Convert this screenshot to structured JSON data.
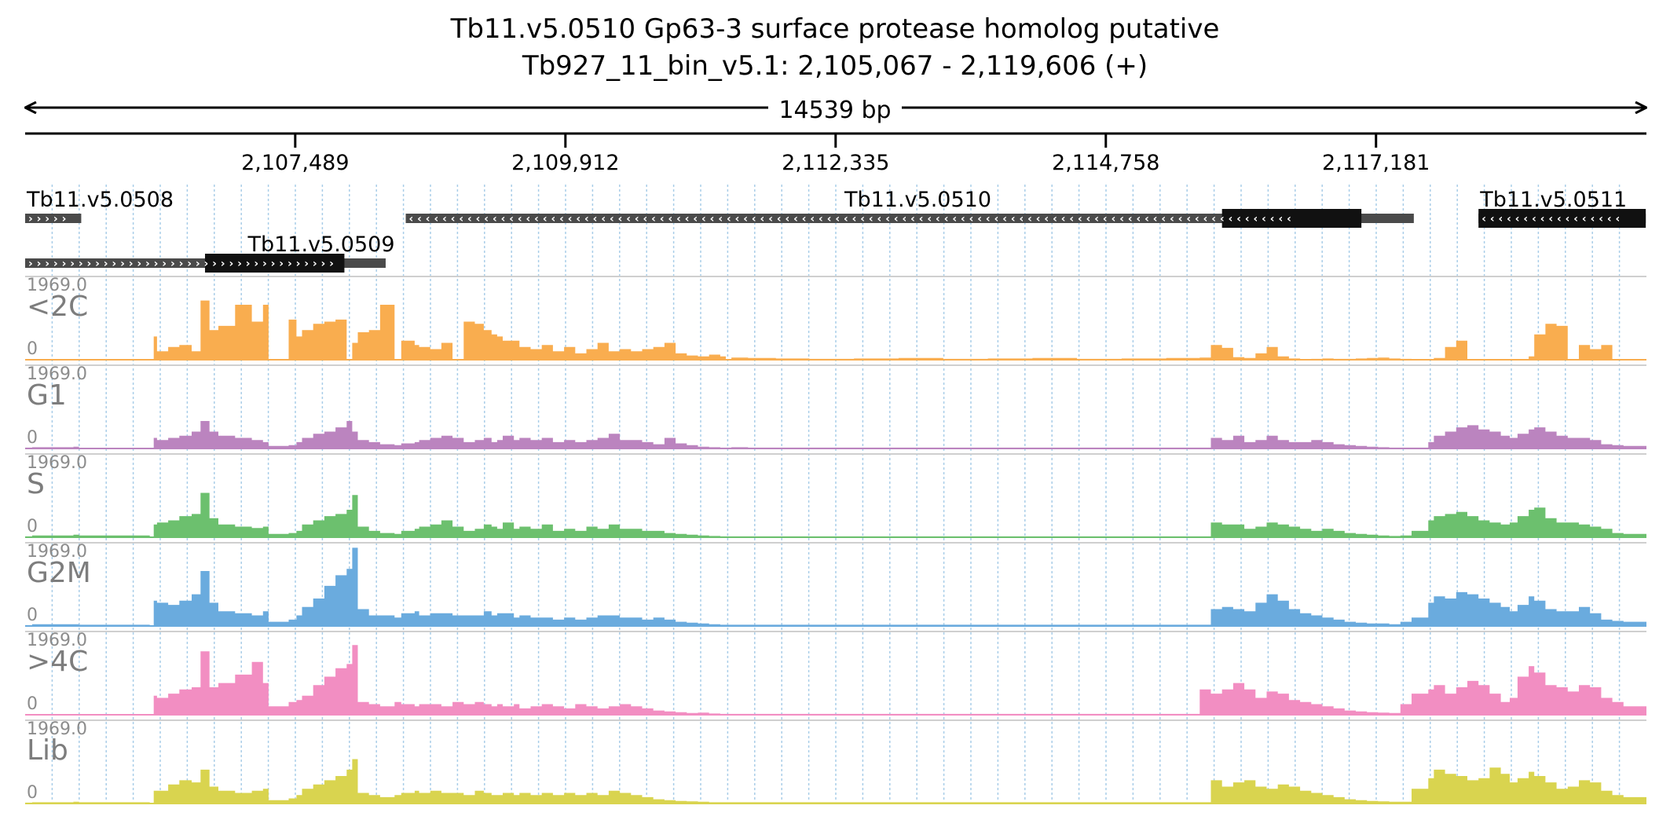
{
  "chart_data": {
    "type": "area",
    "title": "Tb11.v5.0510  Gp63-3 surface protease homolog  putative",
    "subtitle": "Tb927_11_bin_v5.1: 2,105,067 - 2,119,606 (+)",
    "span_label": "14539 bp",
    "xlim": [
      2105067,
      2119606
    ],
    "ticks": [
      {
        "value": 2107489,
        "label": "2,107,489"
      },
      {
        "value": 2109912,
        "label": "2,109,912"
      },
      {
        "value": 2112335,
        "label": "2,112,335"
      },
      {
        "value": 2114758,
        "label": "2,114,758"
      },
      {
        "value": 2117181,
        "label": "2,117,181"
      }
    ],
    "genes": [
      {
        "name": "Tb11.v5.0508",
        "start": 2105067,
        "end": 2105570,
        "strand": "+",
        "row": 0,
        "label_pos": 2105067,
        "cds": []
      },
      {
        "name": "Tb11.v5.0510",
        "start": 2108480,
        "end": 2117520,
        "strand": "-",
        "row": 0,
        "label_pos": 2112400,
        "cds": [
          [
            2115800,
            2117050
          ]
        ]
      },
      {
        "name": "Tb11.v5.0511",
        "start": 2118100,
        "end": 2119600,
        "strand": "-",
        "row": 0,
        "label_pos": 2118100,
        "cds": [
          [
            2118100,
            2119600
          ]
        ]
      },
      {
        "name": "Tb11.v5.0509",
        "start": 2105067,
        "end": 2108300,
        "strand": "+",
        "row": 1,
        "label_pos": 2107050,
        "cds": [
          [
            2106680,
            2107930
          ]
        ]
      }
    ],
    "grid": true,
    "ylim": [
      0,
      1969.0
    ],
    "ymax_label": "1969.0",
    "ymin_label": "0",
    "x": [
      2105067,
      2105130,
      2105500,
      2105550,
      2106185,
      2106220,
      2106250,
      2106350,
      2106450,
      2106560,
      2106640,
      2106720,
      2106800,
      2106950,
      2107100,
      2107200,
      2107250,
      2107430,
      2107500,
      2107550,
      2107650,
      2107750,
      2107850,
      2107950,
      2108000,
      2108050,
      2108150,
      2108250,
      2108380,
      2108440,
      2108560,
      2108600,
      2108700,
      2108800,
      2108900,
      2109000,
      2109100,
      2109180,
      2109250,
      2109300,
      2109350,
      2109450,
      2109500,
      2109600,
      2109700,
      2109800,
      2109900,
      2110000,
      2110100,
      2110200,
      2110300,
      2110400,
      2110500,
      2110600,
      2110700,
      2110800,
      2110900,
      2111000,
      2111100,
      2111200,
      2111300,
      2111350,
      2111400,
      2111550,
      2111800,
      2112100,
      2112500,
      2112900,
      2113300,
      2113700,
      2114100,
      2114500,
      2114900,
      2115300,
      2115600,
      2115700,
      2115800,
      2115900,
      2116000,
      2116100,
      2116200,
      2116300,
      2116400,
      2116500,
      2116600,
      2116700,
      2116800,
      2116900,
      2117000,
      2117100,
      2117200,
      2117300,
      2117400,
      2117500,
      2117650,
      2117700,
      2117800,
      2117900,
      2118000,
      2118100,
      2118200,
      2118300,
      2118380,
      2118450,
      2118550,
      2118600,
      2118700,
      2118800,
      2118900,
      2119000,
      2119100,
      2119200,
      2119300,
      2119400,
      2119606
    ],
    "series": [
      {
        "name": "<2C",
        "color": "#f9ad4f",
        "values": [
          0,
          0,
          0,
          0,
          0,
          550,
          200,
          300,
          350,
          200,
          1400,
          700,
          800,
          1300,
          900,
          1300,
          0,
          950,
          550,
          700,
          850,
          900,
          950,
          0,
          400,
          650,
          700,
          1300,
          0,
          450,
          350,
          300,
          250,
          400,
          0,
          900,
          850,
          700,
          600,
          550,
          450,
          450,
          300,
          250,
          350,
          200,
          300,
          150,
          250,
          400,
          200,
          250,
          200,
          250,
          300,
          400,
          150,
          100,
          80,
          120,
          80,
          0,
          50,
          40,
          30,
          20,
          30,
          40,
          20,
          30,
          40,
          20,
          30,
          40,
          50,
          350,
          280,
          60,
          40,
          150,
          300,
          80,
          30,
          0,
          20,
          30,
          20,
          20,
          30,
          40,
          50,
          30,
          20,
          0,
          0,
          40,
          300,
          450,
          0,
          0,
          0,
          0,
          0,
          0,
          80,
          600,
          850,
          800,
          0,
          350,
          250,
          350,
          0,
          0,
          0
        ]
      },
      {
        "name": "G1",
        "color": "#bb84bf",
        "values": [
          20,
          30,
          40,
          0,
          0,
          250,
          200,
          250,
          300,
          400,
          650,
          400,
          300,
          250,
          200,
          150,
          60,
          80,
          150,
          250,
          350,
          400,
          500,
          650,
          400,
          200,
          150,
          100,
          80,
          120,
          150,
          200,
          250,
          300,
          250,
          150,
          200,
          250,
          150,
          200,
          300,
          200,
          250,
          200,
          250,
          150,
          200,
          150,
          200,
          250,
          350,
          200,
          200,
          150,
          100,
          250,
          120,
          80,
          40,
          30,
          20,
          20,
          30,
          20,
          20,
          20,
          20,
          20,
          20,
          20,
          20,
          20,
          20,
          20,
          20,
          250,
          200,
          300,
          150,
          200,
          300,
          200,
          150,
          150,
          200,
          150,
          100,
          80,
          60,
          40,
          30,
          20,
          20,
          20,
          150,
          300,
          400,
          500,
          550,
          450,
          400,
          300,
          250,
          350,
          450,
          500,
          400,
          300,
          250,
          250,
          200,
          100,
          80,
          60,
          30
        ]
      },
      {
        "name": "S",
        "color": "#6cc06e",
        "values": [
          20,
          40,
          60,
          40,
          0,
          300,
          350,
          400,
          500,
          550,
          1050,
          450,
          300,
          250,
          220,
          250,
          80,
          100,
          150,
          300,
          400,
          500,
          550,
          650,
          1000,
          250,
          150,
          100,
          80,
          150,
          200,
          250,
          300,
          400,
          250,
          150,
          200,
          300,
          250,
          200,
          350,
          200,
          250,
          200,
          300,
          150,
          200,
          150,
          250,
          200,
          300,
          200,
          200,
          150,
          150,
          100,
          80,
          60,
          40,
          30,
          20,
          20,
          20,
          20,
          20,
          20,
          20,
          20,
          20,
          20,
          20,
          20,
          20,
          20,
          20,
          350,
          300,
          300,
          200,
          250,
          350,
          300,
          250,
          200,
          150,
          200,
          150,
          100,
          80,
          60,
          40,
          30,
          40,
          150,
          400,
          500,
          550,
          600,
          500,
          400,
          350,
          300,
          350,
          500,
          650,
          700,
          450,
          350,
          350,
          300,
          250,
          200,
          100,
          80,
          50
        ]
      },
      {
        "name": "G2M",
        "color": "#6aabde",
        "values": [
          20,
          40,
          40,
          30,
          0,
          600,
          550,
          500,
          600,
          750,
          1300,
          550,
          350,
          300,
          250,
          350,
          100,
          150,
          250,
          450,
          650,
          950,
          1200,
          1350,
          1850,
          400,
          250,
          250,
          200,
          300,
          350,
          250,
          300,
          300,
          250,
          250,
          250,
          350,
          250,
          300,
          300,
          200,
          250,
          200,
          200,
          150,
          200,
          150,
          200,
          250,
          250,
          200,
          200,
          150,
          200,
          150,
          100,
          80,
          60,
          40,
          30,
          30,
          30,
          30,
          30,
          30,
          30,
          30,
          30,
          30,
          30,
          30,
          30,
          30,
          30,
          400,
          450,
          400,
          350,
          550,
          750,
          600,
          400,
          300,
          250,
          200,
          150,
          100,
          80,
          60,
          60,
          40,
          100,
          200,
          550,
          700,
          650,
          800,
          750,
          650,
          550,
          450,
          350,
          500,
          700,
          600,
          400,
          350,
          350,
          450,
          300,
          150,
          120,
          100,
          80
        ]
      },
      {
        "name": ">4C",
        "color": "#f28ec2",
        "values": [
          0,
          0,
          0,
          0,
          0,
          450,
          400,
          500,
          600,
          650,
          1500,
          650,
          750,
          950,
          1250,
          750,
          200,
          300,
          350,
          450,
          700,
          900,
          1100,
          1200,
          1650,
          300,
          250,
          200,
          300,
          250,
          200,
          250,
          250,
          200,
          300,
          250,
          300,
          250,
          200,
          250,
          200,
          250,
          150,
          200,
          250,
          200,
          150,
          250,
          200,
          150,
          200,
          250,
          200,
          150,
          100,
          80,
          60,
          40,
          50,
          30,
          20,
          20,
          20,
          20,
          20,
          20,
          20,
          20,
          20,
          20,
          20,
          20,
          20,
          20,
          600,
          500,
          600,
          750,
          600,
          400,
          550,
          500,
          350,
          300,
          250,
          200,
          150,
          100,
          80,
          60,
          50,
          40,
          250,
          500,
          600,
          700,
          500,
          650,
          800,
          700,
          500,
          300,
          400,
          900,
          1150,
          1000,
          700,
          650,
          550,
          700,
          650,
          400,
          300,
          200,
          100
        ]
      },
      {
        "name": "Lib",
        "color": "#d9d44f",
        "values": [
          20,
          30,
          40,
          30,
          0,
          300,
          300,
          450,
          550,
          500,
          800,
          400,
          300,
          250,
          300,
          350,
          80,
          120,
          200,
          350,
          450,
          550,
          650,
          800,
          1050,
          250,
          200,
          150,
          200,
          250,
          300,
          250,
          300,
          250,
          250,
          200,
          300,
          250,
          200,
          200,
          250,
          200,
          250,
          200,
          250,
          200,
          250,
          200,
          250,
          200,
          300,
          250,
          200,
          150,
          100,
          80,
          60,
          50,
          40,
          30,
          30,
          30,
          30,
          30,
          30,
          30,
          30,
          30,
          30,
          30,
          30,
          30,
          30,
          30,
          30,
          550,
          400,
          500,
          550,
          400,
          350,
          450,
          400,
          300,
          250,
          200,
          150,
          100,
          80,
          60,
          50,
          40,
          40,
          350,
          600,
          800,
          700,
          650,
          550,
          600,
          850,
          700,
          500,
          600,
          750,
          650,
          500,
          350,
          400,
          550,
          500,
          300,
          200,
          150,
          100
        ]
      }
    ]
  }
}
